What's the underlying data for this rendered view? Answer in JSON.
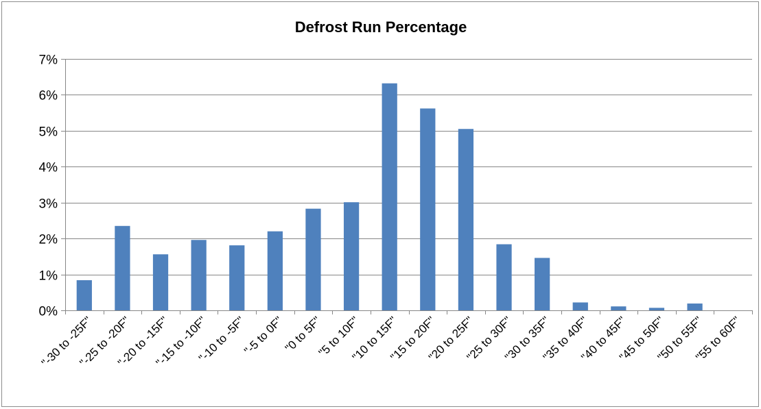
{
  "chart_data": {
    "type": "bar",
    "title": "Defrost Run Percentage",
    "xlabel": "",
    "ylabel": "",
    "categories": [
      "\"-30 to -25F\"",
      "\"-25 to -20F\"",
      "\"-20 to -15F\"",
      "\"-15 to -10F\"",
      "\"-10 to -5F\"",
      "\"-5 to 0F\"",
      "\"0 to 5F\"",
      "\"5 to 10F\"",
      "\"10 to 15F\"",
      "\"15 to 20F\"",
      "\"20 to 25F\"",
      "\"25 to 30F\"",
      "\"30 to 35F\"",
      "\"35 to 40F\"",
      "\"40 to 45F\"",
      "\"45 to 50F\"",
      "\"50 to 55F\"",
      "\"55 to 60F\""
    ],
    "values": [
      0.84,
      2.35,
      1.56,
      1.96,
      1.81,
      2.2,
      2.83,
      3.01,
      6.32,
      5.62,
      5.05,
      1.84,
      1.46,
      0.22,
      0.11,
      0.07,
      0.19,
      0.0
    ],
    "value_unit": "%",
    "ylim": [
      0,
      7
    ],
    "yticks": [
      0,
      1,
      2,
      3,
      4,
      5,
      6,
      7
    ],
    "ytick_labels": [
      "0%",
      "1%",
      "2%",
      "3%",
      "4%",
      "5%",
      "6%",
      "7%"
    ],
    "grid": true,
    "legend": "none",
    "bar_color": "#4f81bd",
    "grid_color": "#868686"
  }
}
